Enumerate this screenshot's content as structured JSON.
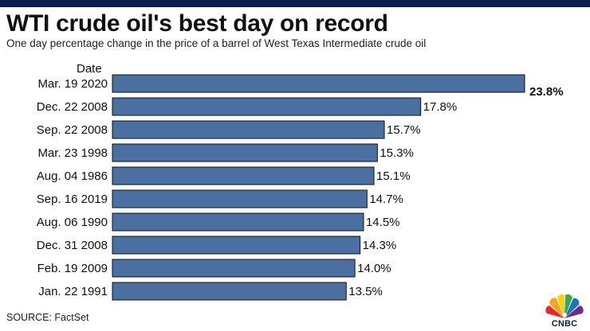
{
  "header": {
    "title": "WTI crude oil's best day on record",
    "subtitle": "One day percentage change in the price of a barrel of West Texas Intermediate crude oil"
  },
  "footer": {
    "source": "SOURCE: FactSet",
    "logo_text": "CNBC"
  },
  "colors": {
    "bar": "#4a6fa0",
    "bar_stroke": "#111111",
    "topbar": "#0b1f4a"
  },
  "chart_data": {
    "type": "bar",
    "orientation": "horizontal",
    "ylabel": "Date",
    "categories": [
      "Mar. 19 2020",
      "Dec. 22 2008",
      "Sep. 22 2008",
      "Mar. 23 1998",
      "Aug. 04 1986",
      "Sep. 16 2019",
      "Aug. 06 1990",
      "Dec. 31 2008",
      "Feb. 19 2009",
      "Jan. 22 1991"
    ],
    "values": [
      23.8,
      17.8,
      15.7,
      15.3,
      15.1,
      14.7,
      14.5,
      14.3,
      14.0,
      13.5
    ],
    "value_labels": [
      "23.8%",
      "17.8%",
      "15.7%",
      "15.3%",
      "15.1%",
      "14.7%",
      "14.5%",
      "14.3%",
      "14.0%",
      "13.5%"
    ],
    "xlim": [
      0,
      23.8
    ],
    "grid": false
  }
}
